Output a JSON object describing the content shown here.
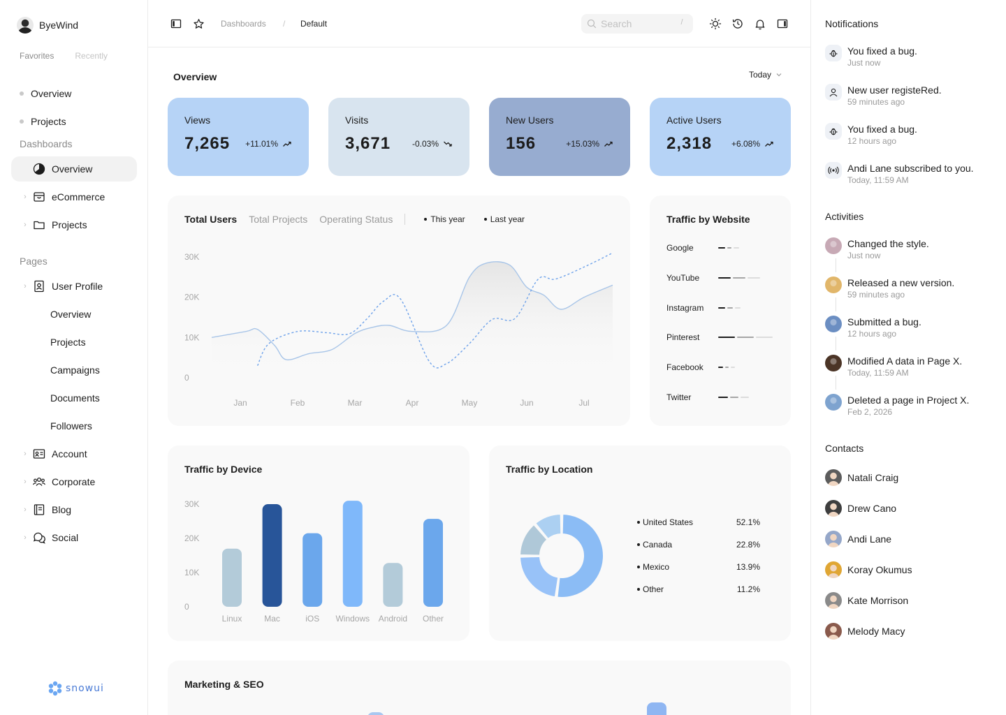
{
  "sidebar": {
    "brand": "ByeWind",
    "tabs": [
      "Favorites",
      "Recently"
    ],
    "favorites": [
      "Overview",
      "Projects"
    ],
    "dashboards_title": "Dashboards",
    "dashboards": [
      {
        "label": "Overview",
        "icon": "pie-chart-icon",
        "active": true
      },
      {
        "label": "eCommerce",
        "icon": "shopping-bag-icon"
      },
      {
        "label": "Projects",
        "icon": "folder-icon"
      }
    ],
    "pages_title": "Pages",
    "pages": [
      {
        "label": "User Profile",
        "icon": "user-badge-icon"
      },
      {
        "label": "Overview",
        "sub": true
      },
      {
        "label": "Projects",
        "sub": true
      },
      {
        "label": "Campaigns",
        "sub": true
      },
      {
        "label": "Documents",
        "sub": true
      },
      {
        "label": "Followers",
        "sub": true
      },
      {
        "label": "Account",
        "icon": "id-card-icon"
      },
      {
        "label": "Corporate",
        "icon": "users-group-icon"
      },
      {
        "label": "Blog",
        "icon": "notebook-icon"
      },
      {
        "label": "Social",
        "icon": "chat-bubbles-icon"
      }
    ],
    "footer_brand": "snowui"
  },
  "topbar": {
    "breadcrumb": [
      "Dashboards",
      "/",
      "Default"
    ],
    "search_placeholder": "Search",
    "search_shortcut": "/"
  },
  "overview": {
    "title": "Overview",
    "range": "Today",
    "stats": [
      {
        "label": "Views",
        "value": "7,265",
        "change": "+11.01%",
        "trend": "up",
        "color": "#b6d3f6"
      },
      {
        "label": "Visits",
        "value": "3,671",
        "change": "-0.03%",
        "trend": "down",
        "color": "#d8e4ef"
      },
      {
        "label": "New Users",
        "value": "156",
        "change": "+15.03%",
        "trend": "up",
        "color": "#97acd0"
      },
      {
        "label": "Active Users",
        "value": "2,318",
        "change": "+6.08%",
        "trend": "up",
        "color": "#b6d3f6"
      }
    ]
  },
  "total_users": {
    "tabs": [
      "Total Users",
      "Total Projects",
      "Operating Status"
    ],
    "legend": [
      "This year",
      "Last year"
    ]
  },
  "traffic_website": {
    "title": "Traffic by Website",
    "sites": [
      "Google",
      "YouTube",
      "Instagram",
      "Pinterest",
      "Facebook",
      "Twitter"
    ]
  },
  "traffic_device": {
    "title": "Traffic by Device"
  },
  "traffic_location": {
    "title": "Traffic by Location"
  },
  "marketing": {
    "title": "Marketing & SEO"
  },
  "chart_data": [
    {
      "type": "line",
      "x": [
        "Jan",
        "Feb",
        "Mar",
        "Apr",
        "May",
        "Jun",
        "Jul"
      ],
      "ylim": [
        0,
        30000
      ],
      "yticks": [
        "0",
        "10K",
        "20K",
        "30K"
      ],
      "series": [
        {
          "name": "This year",
          "style": "dashed",
          "x": [
            0.3,
            0.5,
            1.0,
            1.5,
            1.9,
            2.2,
            2.5,
            2.8,
            3.3,
            3.6,
            4.0,
            4.4,
            4.8,
            5.2,
            5.5,
            6.0,
            6.5
          ],
          "values": [
            3000,
            8500,
            11500,
            11200,
            10900,
            14500,
            19000,
            19500,
            4000,
            3500,
            8500,
            14500,
            14800,
            24500,
            24500,
            27500,
            31000
          ]
        },
        {
          "name": "Last year",
          "style": "solid",
          "x": [
            -0.5,
            0.1,
            0.3,
            0.6,
            0.8,
            1.2,
            1.6,
            2.0,
            2.3,
            2.6,
            3.0,
            3.6,
            4.0,
            4.3,
            4.7,
            5.0,
            5.3,
            5.6,
            6.0,
            6.5
          ],
          "values": [
            10000,
            11500,
            12000,
            8000,
            4500,
            6000,
            7000,
            11000,
            12500,
            13000,
            11500,
            13000,
            25000,
            28500,
            28000,
            22500,
            20500,
            17000,
            20000,
            23000
          ]
        }
      ]
    },
    {
      "type": "bar",
      "categories": [
        "Linux",
        "Mac",
        "iOS",
        "Windows",
        "Android",
        "Other"
      ],
      "values": [
        17000,
        30000,
        21500,
        31000,
        12800,
        25700
      ],
      "colors": [
        "#b3cbd9",
        "#285599",
        "#6ba7ec",
        "#7fb8fa",
        "#b3cbd9",
        "#6ba7ec"
      ],
      "ylim": [
        0,
        30000
      ],
      "yticks": [
        "0",
        "10K",
        "20K",
        "30K"
      ]
    },
    {
      "type": "pie",
      "categories": [
        "United States",
        "Canada",
        "Mexico",
        "Other"
      ],
      "values": [
        52.1,
        22.8,
        13.9,
        11.2
      ],
      "labels": [
        "52.1%",
        "22.8%",
        "13.9%",
        "11.2%"
      ],
      "colors": [
        "#8bbcf5",
        "#98c2f8",
        "#afc8d8",
        "#acd0f2"
      ]
    }
  ],
  "notifications": {
    "title": "Notifications",
    "items": [
      {
        "text": "You fixed a bug.",
        "time": "Just now",
        "icon": "bug-icon"
      },
      {
        "text": "New user registeRed.",
        "time": "59 minutes ago",
        "icon": "user-icon"
      },
      {
        "text": "You fixed a bug.",
        "time": "12 hours ago",
        "icon": "bug-icon"
      },
      {
        "text": "Andi Lane subscribed to you.",
        "time": "Today, 11:59 AM",
        "icon": "broadcast-icon"
      }
    ]
  },
  "activities": {
    "title": "Activities",
    "items": [
      {
        "text": "Changed the style.",
        "time": "Just now",
        "color": "#c7a9b5"
      },
      {
        "text": "Released a new version.",
        "time": "59 minutes ago",
        "color": "#e1b66a"
      },
      {
        "text": "Submitted a bug.",
        "time": "12 hours ago",
        "color": "#6b8ec2"
      },
      {
        "text": "Modified A data in Page X.",
        "time": "Today, 11:59 AM",
        "color": "#4b3426"
      },
      {
        "text": "Deleted a page in Project X.",
        "time": "Feb 2, 2026",
        "color": "#7ea3cf"
      }
    ]
  },
  "contacts": {
    "title": "Contacts",
    "items": [
      {
        "name": "Natali Craig",
        "color": "#5c5c5c"
      },
      {
        "name": "Drew Cano",
        "color": "#3e3e3e"
      },
      {
        "name": "Andi Lane",
        "color": "#95a7c9"
      },
      {
        "name": "Koray Okumus",
        "color": "#e0a634"
      },
      {
        "name": "Kate Morrison",
        "color": "#8a8a8a"
      },
      {
        "name": "Melody Macy",
        "color": "#8a5a4c"
      }
    ]
  }
}
